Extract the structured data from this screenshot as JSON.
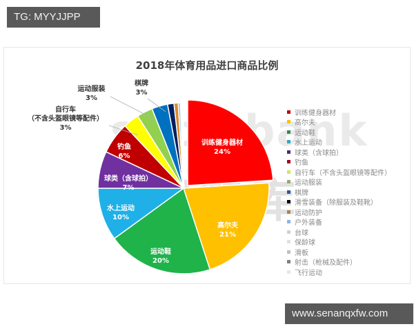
{
  "watermarks": {
    "top_left": "TG: MYYJJPP",
    "bottom_right": "www.senanqxfw.com",
    "background_brand": "sportbank",
    "background_cn": "体银智库"
  },
  "chart_data": {
    "type": "pie",
    "title": "2018年体育用品进口商品比例",
    "legend_position": "right",
    "start_angle": "12 o'clock",
    "direction": "clockwise",
    "categories": [
      "训练健身器材",
      "高尔夫",
      "运动鞋",
      "水上运动",
      "球类（含球拍）",
      "钓鱼",
      "自行车（不含头盔眼镜等配件）",
      "运动服装",
      "棋牌",
      "滑雪装备（除服装及鞋靴）",
      "运动防护",
      "户外装备",
      "台球",
      "保龄球",
      "滑板",
      "射击（枪械及配件）",
      "飞行运动"
    ],
    "values": [
      24,
      21,
      20,
      10,
      7,
      6,
      3,
      3,
      3,
      1.2,
      0.8,
      0.4,
      0.2,
      0.1,
      0.1,
      0.1,
      0.1
    ],
    "labels": [
      {
        "name": "训练健身器材",
        "pct": "24%"
      },
      {
        "name": "高尔夫",
        "pct": "21%"
      },
      {
        "name": "运动鞋",
        "pct": "20%"
      },
      {
        "name": "水上运动",
        "pct": "10%"
      },
      {
        "name": "球类（含球拍）",
        "pct": "7%"
      },
      {
        "name": "钓鱼",
        "pct": "6%"
      },
      {
        "name": "自行车",
        "name2": "（不含头盔眼镜等配件）",
        "pct": "3%"
      },
      {
        "name": "运动服装",
        "pct": "3%"
      },
      {
        "name": "棋牌",
        "pct": "3%"
      }
    ],
    "colors": [
      "#ff0000",
      "#ffc000",
      "#1fb34a",
      "#1fb0e8",
      "#7030a0",
      "#c00000",
      "#ffff00",
      "#92d050",
      "#0070c0",
      "#002060",
      "#d9892f",
      "#8db4e2",
      "#d9d9d9",
      "#e6e6e6",
      "#c8c8c8",
      "#808080",
      "#f0f0f0"
    ],
    "legend_colors": [
      "#c00000",
      "#ffc000",
      "#2e8b57",
      "#31a5c4",
      "#4b2c6e",
      "#a50021",
      "#d6e35a",
      "#9aa86a",
      "#2f5597",
      "#000000",
      "#b08050",
      "#8db4e2",
      "#d0d0d0",
      "#e0e0e0",
      "#bfbfbf",
      "#7f7f7f",
      "#e6e6e6"
    ]
  }
}
